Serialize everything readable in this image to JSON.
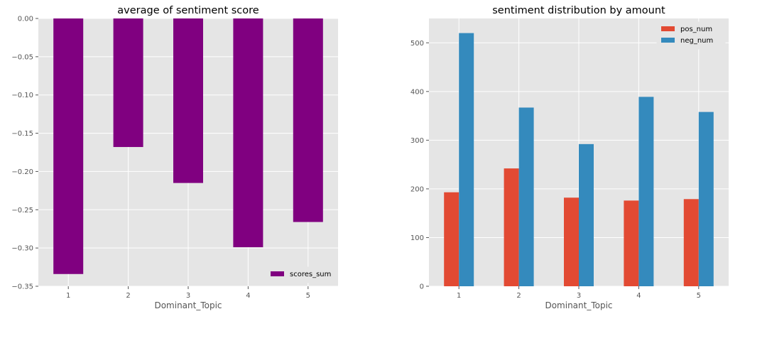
{
  "chart_data": [
    {
      "type": "bar",
      "title": "average of sentiment score",
      "xlabel": "Dominant_Topic",
      "ylabel": "",
      "categories": [
        "1",
        "2",
        "3",
        "4",
        "5"
      ],
      "series": [
        {
          "name": "scores_sum",
          "values": [
            -0.334,
            -0.168,
            -0.215,
            -0.299,
            -0.266
          ],
          "color": "#800080"
        }
      ],
      "ylim": [
        -0.35,
        0.0
      ],
      "yticks": [
        0.0,
        -0.05,
        -0.1,
        -0.15,
        -0.2,
        -0.25,
        -0.3,
        -0.35
      ],
      "ytick_labels": [
        "0.00",
        "−0.05",
        "−0.10",
        "−0.15",
        "−0.20",
        "−0.25",
        "−0.30",
        "−0.35"
      ],
      "grid": true,
      "legend": "lower-right"
    },
    {
      "type": "bar",
      "title": "sentiment distribution by amount",
      "xlabel": "Dominant_Topic",
      "ylabel": "",
      "categories": [
        "1",
        "2",
        "3",
        "4",
        "5"
      ],
      "series": [
        {
          "name": "pos_num",
          "values": [
            193,
            242,
            182,
            176,
            179
          ],
          "color": "#E24A33"
        },
        {
          "name": "neg_num",
          "values": [
            520,
            367,
            292,
            389,
            358
          ],
          "color": "#348ABD"
        }
      ],
      "ylim": [
        0,
        550
      ],
      "yticks": [
        0,
        100,
        200,
        300,
        400,
        500
      ],
      "ytick_labels": [
        "0",
        "100",
        "200",
        "300",
        "400",
        "500"
      ],
      "grid": true,
      "legend": "upper-right"
    }
  ]
}
